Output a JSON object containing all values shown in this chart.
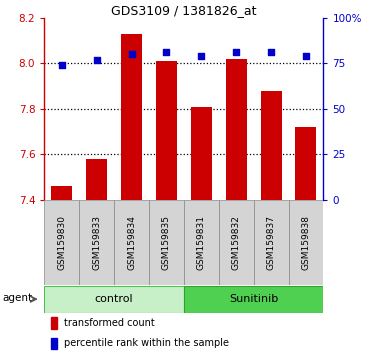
{
  "title": "GDS3109 / 1381826_at",
  "samples": [
    "GSM159830",
    "GSM159833",
    "GSM159834",
    "GSM159835",
    "GSM159831",
    "GSM159832",
    "GSM159837",
    "GSM159838"
  ],
  "red_values": [
    7.46,
    7.58,
    8.13,
    8.01,
    7.81,
    8.02,
    7.88,
    7.72
  ],
  "blue_values": [
    74,
    77,
    80,
    81,
    79,
    81,
    81,
    79
  ],
  "groups": [
    {
      "label": "control",
      "indices": [
        0,
        3
      ],
      "color": "#c8f0c8",
      "border": "#50c050"
    },
    {
      "label": "Sunitinib",
      "indices": [
        4,
        7
      ],
      "color": "#50d050",
      "border": "#30a030"
    }
  ],
  "ylim_left": [
    7.4,
    8.2
  ],
  "ylim_right": [
    0,
    100
  ],
  "yticks_left": [
    7.4,
    7.6,
    7.8,
    8.0,
    8.2
  ],
  "yticks_right": [
    0,
    25,
    50,
    75,
    100
  ],
  "ytick_labels_right": [
    "0",
    "25",
    "50",
    "75",
    "100%"
  ],
  "grid_values": [
    8.0,
    7.8,
    7.6
  ],
  "bar_color": "#cc0000",
  "dot_color": "#0000cc",
  "bar_width": 0.6,
  "legend_red_label": "transformed count",
  "legend_blue_label": "percentile rank within the sample",
  "agent_label": "agent",
  "left_axis_color": "#cc0000",
  "right_axis_color": "#0000cc",
  "sample_bg": "#d4d4d4",
  "n_samples": 8
}
